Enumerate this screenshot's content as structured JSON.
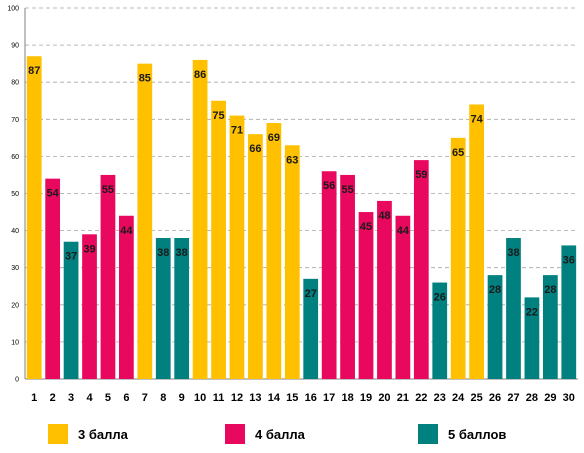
{
  "chart_data": {
    "type": "bar",
    "categories": [
      "1",
      "2",
      "3",
      "4",
      "5",
      "6",
      "7",
      "8",
      "9",
      "10",
      "11",
      "12",
      "13",
      "14",
      "15",
      "16",
      "17",
      "18",
      "19",
      "20",
      "21",
      "22",
      "23",
      "24",
      "25",
      "26",
      "27",
      "28",
      "29",
      "30"
    ],
    "values": [
      87,
      54,
      37,
      39,
      55,
      44,
      85,
      38,
      38,
      86,
      75,
      71,
      66,
      69,
      63,
      27,
      56,
      55,
      45,
      48,
      44,
      59,
      26,
      65,
      74,
      28,
      38,
      22,
      28,
      36
    ],
    "groups": [
      "3 балла",
      "4 балла",
      "5 баллов",
      "4 балла",
      "4 балла",
      "4 балла",
      "3 балла",
      "5 баллов",
      "5 баллов",
      "3 балла",
      "3 балла",
      "3 балла",
      "3 балла",
      "3 балла",
      "3 балла",
      "5 баллов",
      "4 балла",
      "4 балла",
      "4 балла",
      "4 балла",
      "4 балла",
      "4 балла",
      "5 баллов",
      "3 балла",
      "3 балла",
      "5 баллов",
      "5 баллов",
      "5 баллов",
      "5 баллов",
      "5 баллов"
    ],
    "yticks": [
      "0",
      "10",
      "20",
      "30",
      "40",
      "50",
      "60",
      "70",
      "80",
      "90",
      "100"
    ],
    "ylim": [
      0,
      100
    ],
    "grid": true,
    "legend_position": "bottom",
    "legend": [
      {
        "name": "3 балла",
        "color": "#FFC000"
      },
      {
        "name": "4 балла",
        "color": "#E8095E"
      },
      {
        "name": "5 баллов",
        "color": "#00807F"
      }
    ],
    "title": "",
    "xlabel": "",
    "ylabel": ""
  }
}
